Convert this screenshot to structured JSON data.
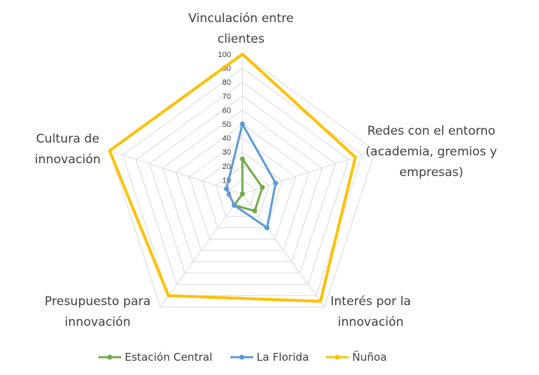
{
  "chart_data": {
    "type": "radar",
    "axes": [
      [
        "Vinculación entre",
        "clientes"
      ],
      [
        "Redes con el entorno",
        "(academia, gremios y",
        "empresas)"
      ],
      [
        "Interés por la",
        "innovación"
      ],
      [
        "Presupuesto para",
        "innovación"
      ],
      [
        "Cultura de",
        "innovación"
      ]
    ],
    "rlim": [
      0,
      100
    ],
    "ticks": [
      0,
      10,
      20,
      30,
      40,
      50,
      60,
      70,
      80,
      90,
      100
    ],
    "grid": true,
    "legend_position": "bottom",
    "series": [
      {
        "name": "Estación Central",
        "color": "#70AD47",
        "values": [
          25,
          15,
          15,
          10,
          0
        ]
      },
      {
        "name": "La Florida",
        "color": "#5B9BD5",
        "values": [
          50,
          25,
          30,
          10,
          12
        ]
      },
      {
        "name": "Ñuñoa",
        "color": "#FFC000",
        "values": [
          100,
          85,
          95,
          90,
          100
        ]
      }
    ]
  }
}
